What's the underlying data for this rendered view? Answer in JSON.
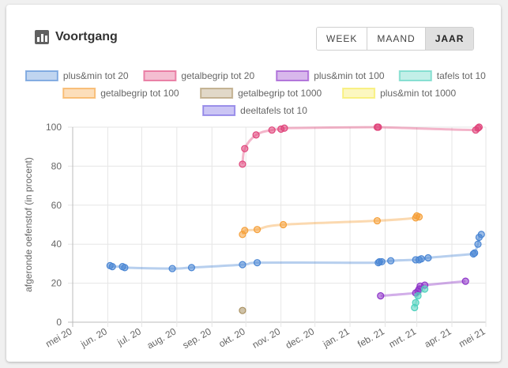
{
  "header": {
    "title": "Voortgang",
    "icon": "bar-chart-icon"
  },
  "range_toggle": {
    "options": [
      "WEEK",
      "MAAND",
      "JAAR"
    ],
    "selected": "JAAR"
  },
  "chart_data": {
    "type": "line",
    "ylabel": "afgeronde oefenstof (in procent)",
    "xlabel": "",
    "ylim": [
      0,
      100
    ],
    "yticks": [
      0,
      20,
      40,
      60,
      80,
      100
    ],
    "xlim": [
      "2020-05-01",
      "2021-05-01"
    ],
    "xticks": [
      {
        "date": "2020-05-01",
        "label": "mei 20"
      },
      {
        "date": "2020-06-01",
        "label": "jun. 20"
      },
      {
        "date": "2020-07-01",
        "label": "jul. 20"
      },
      {
        "date": "2020-08-01",
        "label": "aug. 20"
      },
      {
        "date": "2020-09-01",
        "label": "sep. 20"
      },
      {
        "date": "2020-10-01",
        "label": "okt. 20"
      },
      {
        "date": "2020-11-01",
        "label": "nov. 20"
      },
      {
        "date": "2020-12-01",
        "label": "dec. 20"
      },
      {
        "date": "2021-01-01",
        "label": "jan. 21"
      },
      {
        "date": "2021-02-01",
        "label": "feb. 21"
      },
      {
        "date": "2021-03-01",
        "label": "mrt. 21"
      },
      {
        "date": "2021-04-01",
        "label": "apr. 21"
      },
      {
        "date": "2021-05-01",
        "label": "mei 21"
      }
    ],
    "grid": true,
    "legend_position": "top",
    "series": [
      {
        "name": "plus&min tot 20",
        "color": "#4a86d4",
        "points": [
          [
            "2020-06-03",
            29
          ],
          [
            "2020-06-05",
            28.5
          ],
          [
            "2020-06-14",
            28.5
          ],
          [
            "2020-06-16",
            28
          ],
          [
            "2020-07-28",
            27.5
          ],
          [
            "2020-08-14",
            28
          ],
          [
            "2020-09-28",
            29.5
          ],
          [
            "2020-10-11",
            30.5
          ],
          [
            "2021-01-26",
            30.5
          ],
          [
            "2021-01-27",
            31
          ],
          [
            "2021-01-29",
            31
          ],
          [
            "2021-02-06",
            31.5
          ],
          [
            "2021-02-28",
            32
          ],
          [
            "2021-03-03",
            32
          ],
          [
            "2021-03-05",
            32.5
          ],
          [
            "2021-03-11",
            33
          ],
          [
            "2021-04-20",
            35
          ],
          [
            "2021-04-21",
            35.5
          ],
          [
            "2021-04-24",
            40
          ],
          [
            "2021-04-25",
            43.5
          ],
          [
            "2021-04-27",
            45
          ]
        ]
      },
      {
        "name": "getalbegrip tot 20",
        "color": "#e0457b",
        "points": [
          [
            "2020-09-28",
            81
          ],
          [
            "2020-09-30",
            89
          ],
          [
            "2020-10-10",
            96
          ],
          [
            "2020-10-24",
            98.5
          ],
          [
            "2020-11-01",
            99
          ],
          [
            "2020-11-04",
            99.5
          ],
          [
            "2021-01-25",
            100
          ],
          [
            "2021-01-26",
            100
          ],
          [
            "2021-04-22",
            98.5
          ],
          [
            "2021-04-24",
            99.5
          ],
          [
            "2021-04-25",
            100
          ]
        ]
      },
      {
        "name": "plus&min tot 100",
        "color": "#8e35c9",
        "points": [
          [
            "2021-01-28",
            13.5
          ],
          [
            "2021-02-28",
            15
          ],
          [
            "2021-03-02",
            16
          ],
          [
            "2021-03-03",
            17
          ],
          [
            "2021-03-04",
            18.5
          ],
          [
            "2021-03-08",
            19
          ],
          [
            "2021-04-13",
            21
          ]
        ]
      },
      {
        "name": "tafels tot 10",
        "color": "#4fd1bd",
        "points": [
          [
            "2021-02-27",
            7.5
          ],
          [
            "2021-02-28",
            10
          ],
          [
            "2021-03-02",
            13.5
          ],
          [
            "2021-03-08",
            17
          ]
        ]
      },
      {
        "name": "getalbegrip tot 100",
        "color": "#f5a03a",
        "points": [
          [
            "2020-09-28",
            45
          ],
          [
            "2020-09-30",
            47
          ],
          [
            "2020-10-11",
            47.5
          ],
          [
            "2020-11-03",
            50
          ],
          [
            "2021-01-25",
            52
          ],
          [
            "2021-02-28",
            53.5
          ],
          [
            "2021-03-01",
            54.5
          ],
          [
            "2021-03-03",
            54
          ]
        ]
      },
      {
        "name": "getalbegrip tot 1000",
        "color": "#a89060",
        "points": [
          [
            "2020-09-28",
            6
          ]
        ]
      },
      {
        "name": "plus&min tot 1000",
        "color": "#f5e94a",
        "points": []
      },
      {
        "name": "deeltafels tot 10",
        "color": "#6a5ae0",
        "points": []
      }
    ]
  }
}
